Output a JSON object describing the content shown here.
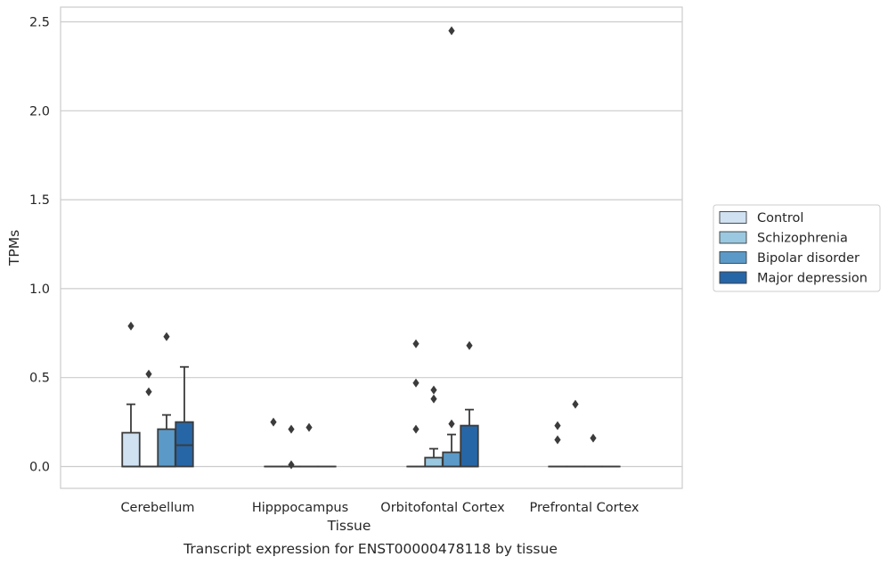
{
  "chart_data": {
    "type": "box",
    "caption": "Transcript expression for ENST00000478118 by tissue",
    "xlabel": "Tissue",
    "ylabel": "TPMs",
    "ylim": [
      -0.12,
      2.58
    ],
    "yticks": [
      0.0,
      0.5,
      1.0,
      1.5,
      2.0,
      2.5
    ],
    "ytick_labels": [
      "0.0",
      "0.5",
      "1.0",
      "1.5",
      "2.0",
      "2.5"
    ],
    "categories": [
      "Cerebellum",
      "Hipppocampus",
      "Orbitofontal Cortex",
      "Prefrontal Cortex"
    ],
    "grid": "y",
    "legend_position": "right",
    "series": [
      {
        "name": "Control",
        "color": "#d0e1f2",
        "boxes": [
          {
            "q1": 0.0,
            "median": 0.0,
            "q3": 0.19,
            "whisker_low": 0.0,
            "whisker_high": 0.35,
            "outliers": [
              0.79
            ]
          },
          {
            "q1": 0.0,
            "median": 0.0,
            "q3": 0.0,
            "whisker_low": 0.0,
            "whisker_high": 0.0,
            "outliers": [
              0.25
            ]
          },
          {
            "q1": 0.0,
            "median": 0.0,
            "q3": 0.0,
            "whisker_low": 0.0,
            "whisker_high": 0.0,
            "outliers": [
              0.69,
              0.47,
              0.21
            ]
          },
          {
            "q1": 0.0,
            "median": 0.0,
            "q3": 0.0,
            "whisker_low": 0.0,
            "whisker_high": 0.0,
            "outliers": [
              0.23,
              0.15
            ]
          }
        ]
      },
      {
        "name": "Schizophrenia",
        "color": "#9ac8e0",
        "boxes": [
          {
            "q1": 0.0,
            "median": 0.0,
            "q3": 0.0,
            "whisker_low": 0.0,
            "whisker_high": 0.0,
            "outliers": [
              0.52,
              0.42
            ]
          },
          {
            "q1": 0.0,
            "median": 0.0,
            "q3": 0.0,
            "whisker_low": 0.0,
            "whisker_high": 0.0,
            "outliers": [
              0.21,
              0.01
            ]
          },
          {
            "q1": 0.0,
            "median": 0.0,
            "q3": 0.05,
            "whisker_low": 0.0,
            "whisker_high": 0.1,
            "outliers": [
              0.43,
              0.38
            ]
          },
          {
            "q1": 0.0,
            "median": 0.0,
            "q3": 0.0,
            "whisker_low": 0.0,
            "whisker_high": 0.0,
            "outliers": [
              0.35
            ]
          }
        ]
      },
      {
        "name": "Bipolar disorder",
        "color": "#5b9ac8",
        "boxes": [
          {
            "q1": 0.0,
            "median": 0.0,
            "q3": 0.21,
            "whisker_low": 0.0,
            "whisker_high": 0.29,
            "outliers": [
              0.73
            ]
          },
          {
            "q1": 0.0,
            "median": 0.0,
            "q3": 0.0,
            "whisker_low": 0.0,
            "whisker_high": 0.0,
            "outliers": [
              0.22
            ]
          },
          {
            "q1": 0.0,
            "median": 0.0,
            "q3": 0.08,
            "whisker_low": 0.0,
            "whisker_high": 0.18,
            "outliers": [
              0.24,
              2.45
            ]
          },
          {
            "q1": 0.0,
            "median": 0.0,
            "q3": 0.0,
            "whisker_low": 0.0,
            "whisker_high": 0.0,
            "outliers": [
              0.16
            ]
          }
        ]
      },
      {
        "name": "Major depression",
        "color": "#2766a6",
        "boxes": [
          {
            "q1": 0.0,
            "median": 0.12,
            "q3": 0.25,
            "whisker_low": 0.0,
            "whisker_high": 0.56,
            "outliers": []
          },
          {
            "q1": 0.0,
            "median": 0.0,
            "q3": 0.0,
            "whisker_low": 0.0,
            "whisker_high": 0.0,
            "outliers": []
          },
          {
            "q1": 0.0,
            "median": 0.0,
            "q3": 0.23,
            "whisker_low": 0.0,
            "whisker_high": 0.32,
            "outliers": [
              0.68
            ]
          },
          {
            "q1": 0.0,
            "median": 0.0,
            "q3": 0.0,
            "whisker_low": 0.0,
            "whisker_high": 0.0,
            "outliers": []
          }
        ]
      }
    ]
  }
}
